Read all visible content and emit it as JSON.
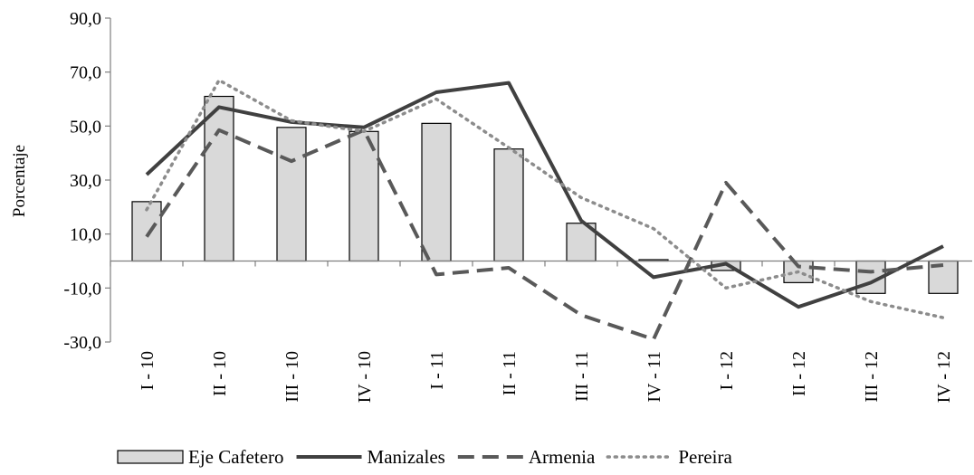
{
  "chart_data": {
    "type": "bar",
    "ylabel": "Porcentaje",
    "xlabel": "",
    "ylim": [
      -30,
      90
    ],
    "yticks": [
      "90,0",
      "70,0",
      "50,0",
      "30,0",
      "10,0",
      "-10,0",
      "-30,0"
    ],
    "ytick_values": [
      90,
      70,
      50,
      30,
      10,
      -10,
      -30
    ],
    "categories": [
      "I - 10",
      "II - 10",
      "III - 10",
      "IV - 10",
      "I - 11",
      "II - 11",
      "III - 11",
      "IV - 11",
      "I - 12",
      "II - 12",
      "III - 12",
      "IV - 12"
    ],
    "legend_position": "bottom",
    "series": [
      {
        "name": "Eje Cafetero",
        "type": "bar",
        "color": "#d9d9d9",
        "values": [
          22,
          61,
          49.5,
          48,
          51,
          41.5,
          14,
          0.5,
          -3.5,
          -8,
          -12,
          -12
        ]
      },
      {
        "name": "Manizales",
        "type": "line",
        "style": "solid",
        "color": "#404040",
        "values": [
          32,
          57,
          51.5,
          49.5,
          62.5,
          66,
          15,
          -6,
          -1,
          -17,
          -8,
          5.5
        ]
      },
      {
        "name": "Armenia",
        "type": "line",
        "style": "dashed",
        "color": "#595959",
        "values": [
          9,
          48.5,
          37,
          48.5,
          -5,
          -2.5,
          -20,
          -29,
          29,
          -2,
          -4,
          -1.5
        ]
      },
      {
        "name": "Pereira",
        "type": "line",
        "style": "dotted",
        "color": "#8c8c8c",
        "values": [
          19,
          67,
          52,
          48,
          60,
          42,
          23.5,
          12,
          -10,
          -4,
          -15,
          -21
        ]
      }
    ]
  }
}
